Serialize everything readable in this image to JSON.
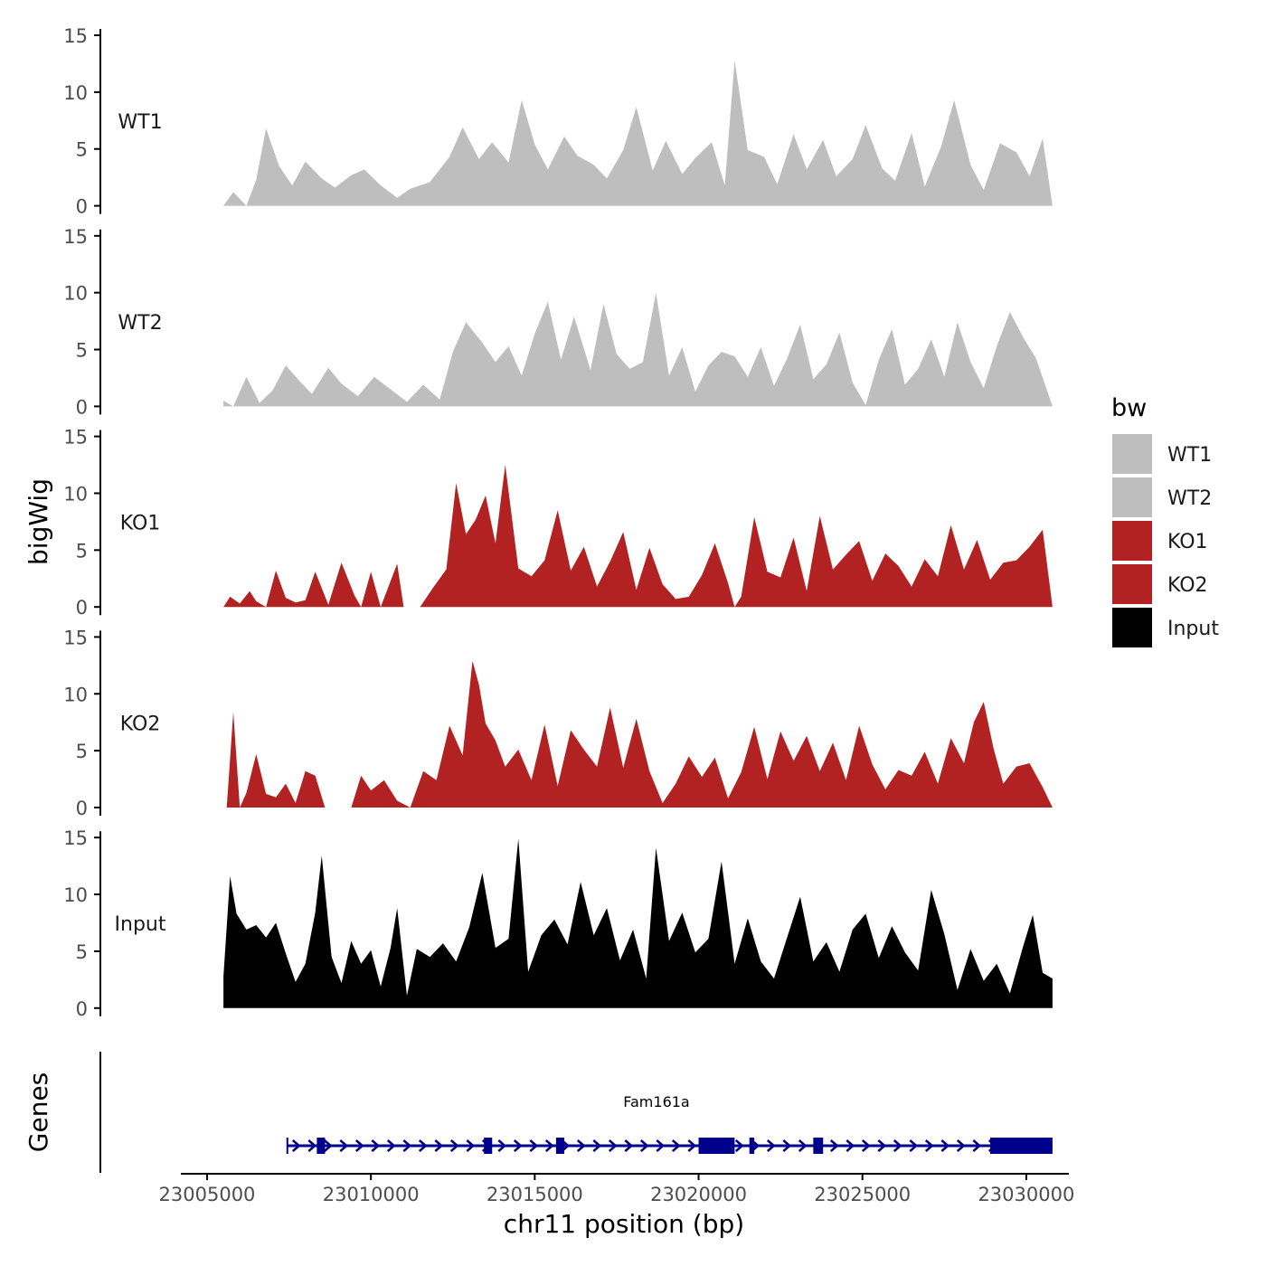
{
  "chart_data": {
    "type": "area",
    "ylabel": "bigWig",
    "xlabel": "chr11 position (bp)",
    "gene_panel_label": "Genes",
    "x_range": [
      23004200,
      23031300
    ],
    "x_ticks": [
      23005000,
      23010000,
      23015000,
      23020000,
      23025000,
      23030000
    ],
    "x_tick_labels": [
      "23005000",
      "23010000",
      "23015000",
      "23020000",
      "23025000",
      "23030000"
    ],
    "y_range": [
      0,
      15
    ],
    "y_ticks": [
      0,
      5,
      10,
      15
    ],
    "y_tick_labels": [
      "0",
      "5",
      "10",
      "15"
    ],
    "legend": {
      "title": "bw",
      "items": [
        {
          "label": "WT1",
          "color": "#bebebe"
        },
        {
          "label": "WT2",
          "color": "#bebebe"
        },
        {
          "label": "KO1",
          "color": "#b22222"
        },
        {
          "label": "KO2",
          "color": "#b22222"
        },
        {
          "label": "Input",
          "color": "#000000"
        }
      ]
    },
    "series": [
      {
        "name": "WT1",
        "color": "#bebebe",
        "x": [
          23005500,
          23005800,
          23006200,
          23006500,
          23006800,
          23007200,
          23007600,
          23008000,
          23008500,
          23008900,
          23009400,
          23009800,
          23010300,
          23010800,
          23011200,
          23011800,
          23012400,
          23012800,
          23013300,
          23013700,
          23014200,
          23014600,
          23015000,
          23015400,
          23015900,
          23016300,
          23016800,
          23017200,
          23017700,
          23018100,
          23018600,
          23019000,
          23019500,
          23019900,
          23020400,
          23020800,
          23021100,
          23021500,
          23022000,
          23022400,
          23022900,
          23023300,
          23023800,
          23024200,
          23024700,
          23025100,
          23025600,
          23026000,
          23026500,
          23026900,
          23027400,
          23027800,
          23028300,
          23028700,
          23029200,
          23029700,
          23030100,
          23030500,
          23030800
        ],
        "values": [
          0,
          1.2,
          0,
          2.3,
          6.8,
          3.5,
          1.8,
          3.9,
          2.4,
          1.6,
          2.7,
          3.2,
          1.8,
          0.7,
          1.5,
          2.1,
          4.3,
          6.9,
          4.1,
          5.6,
          3.8,
          9.3,
          5.4,
          3.2,
          6.1,
          4.4,
          3.6,
          2.4,
          4.9,
          8.7,
          3.1,
          5.7,
          2.8,
          4.2,
          5.6,
          1.8,
          12.8,
          4.9,
          4.3,
          1.9,
          6.3,
          3.2,
          5.8,
          2.6,
          4.1,
          7.1,
          3.3,
          2.2,
          6.4,
          1.7,
          5.2,
          9.3,
          3.6,
          1.4,
          5.5,
          4.7,
          2.6,
          5.9,
          0
        ]
      },
      {
        "name": "WT2",
        "color": "#bebebe",
        "x": [
          23005500,
          23005800,
          23006200,
          23006600,
          23007000,
          23007400,
          23007800,
          23008200,
          23008700,
          23009100,
          23009600,
          23010100,
          23010600,
          23011100,
          23011600,
          23012100,
          23012500,
          23012900,
          23013400,
          23013800,
          23014200,
          23014600,
          23015000,
          23015400,
          23015800,
          23016200,
          23016700,
          23017100,
          23017500,
          23017900,
          23018300,
          23018700,
          23019100,
          23019500,
          23019900,
          23020300,
          23020700,
          23021100,
          23021500,
          23021900,
          23022300,
          23022700,
          23023100,
          23023500,
          23023900,
          23024300,
          23024700,
          23025100,
          23025500,
          23025900,
          23026300,
          23026700,
          23027100,
          23027500,
          23027900,
          23028300,
          23028700,
          23029100,
          23029500,
          23029900,
          23030300,
          23030800
        ],
        "values": [
          0.5,
          0,
          2.6,
          0.3,
          1.4,
          3.6,
          2.3,
          1.1,
          3.4,
          2.0,
          0.9,
          2.6,
          1.5,
          0.4,
          1.9,
          0.6,
          4.8,
          7.4,
          5.6,
          3.9,
          5.3,
          2.7,
          6.4,
          9.2,
          4.1,
          7.9,
          3.2,
          9.0,
          4.6,
          3.3,
          3.9,
          10.0,
          2.7,
          5.2,
          1.3,
          3.6,
          4.8,
          4.4,
          2.6,
          5.2,
          1.8,
          4.2,
          7.2,
          2.4,
          3.7,
          6.5,
          2.1,
          0.1,
          4.1,
          6.8,
          1.9,
          3.3,
          5.9,
          2.6,
          7.4,
          3.9,
          1.6,
          5.3,
          8.3,
          6.1,
          4.2,
          0
        ]
      },
      {
        "name": "KO1",
        "color": "#b22222",
        "x": [
          23005500,
          23005700,
          23006000,
          23006300,
          23006500,
          23006800,
          23007100,
          23007400,
          23007700,
          23008000,
          23008300,
          23008700,
          23009100,
          23009500,
          23009700,
          23010000,
          23010300,
          23010800,
          23011000,
          23011500,
          23011900,
          23012300,
          23012600,
          23012900,
          23013200,
          23013500,
          23013800,
          23014100,
          23014500,
          23014900,
          23015300,
          23015700,
          23016100,
          23016500,
          23016900,
          23017300,
          23017700,
          23018100,
          23018500,
          23018900,
          23019300,
          23019700,
          23020100,
          23020500,
          23020900,
          23021100,
          23021300,
          23021700,
          23022100,
          23022500,
          23022900,
          23023300,
          23023700,
          23024100,
          23024500,
          23024900,
          23025300,
          23025700,
          23026100,
          23026500,
          23026900,
          23027300,
          23027700,
          23028100,
          23028500,
          23028900,
          23029300,
          23029700,
          23030100,
          23030500,
          23030800
        ],
        "values": [
          0,
          0.9,
          0.3,
          1.4,
          0.5,
          0,
          3.2,
          0.8,
          0.4,
          0.6,
          3.1,
          0.2,
          3.9,
          1.0,
          0,
          3.1,
          0,
          3.8,
          0,
          0,
          1.7,
          3.3,
          10.9,
          6.4,
          7.7,
          9.8,
          5.6,
          12.5,
          3.4,
          2.7,
          4.1,
          8.5,
          3.2,
          5.3,
          1.8,
          4.0,
          6.6,
          1.5,
          5.2,
          2.0,
          0.7,
          0.9,
          2.8,
          5.6,
          2.1,
          0,
          0.9,
          7.9,
          3.1,
          2.6,
          6.1,
          1.4,
          8.0,
          3.3,
          4.6,
          5.8,
          2.3,
          4.7,
          3.6,
          1.8,
          4.2,
          2.7,
          7.2,
          3.3,
          5.9,
          2.4,
          3.9,
          4.1,
          5.3,
          6.8,
          0
        ]
      },
      {
        "name": "KO2",
        "color": "#b22222",
        "x": [
          23005600,
          23005800,
          23006000,
          23006200,
          23006500,
          23006800,
          23007100,
          23007400,
          23007700,
          23008000,
          23008300,
          23008600,
          23009000,
          23009400,
          23009700,
          23010000,
          23010400,
          23010800,
          23011200,
          23011600,
          23012000,
          23012400,
          23012800,
          23013100,
          23013300,
          23013500,
          23013800,
          23014100,
          23014500,
          23014900,
          23015300,
          23015700,
          23016100,
          23016500,
          23016900,
          23017300,
          23017700,
          23018100,
          23018500,
          23018900,
          23019300,
          23019700,
          23020100,
          23020500,
          23020900,
          23021300,
          23021700,
          23022100,
          23022500,
          23022900,
          23023300,
          23023700,
          23024100,
          23024500,
          23024900,
          23025300,
          23025700,
          23026100,
          23026500,
          23026900,
          23027300,
          23027700,
          23028100,
          23028400,
          23028700,
          23029000,
          23029300,
          23029700,
          23030100,
          23030500,
          23030800
        ],
        "values": [
          0,
          8.4,
          0,
          1.3,
          4.7,
          1.2,
          0.9,
          2.1,
          0.4,
          3.2,
          2.8,
          0,
          0,
          0,
          2.8,
          1.5,
          2.4,
          0.6,
          0,
          3.2,
          2.4,
          7.2,
          4.6,
          12.9,
          10.8,
          7.4,
          5.9,
          3.6,
          5.1,
          2.4,
          7.3,
          1.9,
          6.8,
          5.1,
          3.6,
          8.8,
          3.5,
          7.8,
          3.2,
          0.4,
          2.1,
          4.5,
          2.7,
          4.4,
          0.8,
          3.1,
          7.1,
          2.5,
          6.7,
          4.1,
          6.3,
          3.2,
          5.7,
          2.4,
          7.2,
          3.8,
          1.6,
          3.3,
          2.8,
          4.9,
          2.1,
          6.1,
          3.9,
          7.5,
          9.3,
          5.2,
          2.1,
          3.6,
          3.9,
          1.8,
          0
        ]
      },
      {
        "name": "Input",
        "color": "#000000",
        "x": [
          23005500,
          23005700,
          23005900,
          23006200,
          23006500,
          23006800,
          23007100,
          23007400,
          23007700,
          23008000,
          23008300,
          23008500,
          23008800,
          23009100,
          23009400,
          23009700,
          23010000,
          23010300,
          23010600,
          23010800,
          23011100,
          23011400,
          23011800,
          23012200,
          23012600,
          23013000,
          23013400,
          23013800,
          23014200,
          23014500,
          23014800,
          23015200,
          23015600,
          23016000,
          23016400,
          23016800,
          23017200,
          23017600,
          23018000,
          23018400,
          23018700,
          23019100,
          23019500,
          23019900,
          23020300,
          23020700,
          23021100,
          23021500,
          23021900,
          23022300,
          23022700,
          23023100,
          23023500,
          23023900,
          23024300,
          23024700,
          23025100,
          23025500,
          23025900,
          23026300,
          23026700,
          23027100,
          23027500,
          23027900,
          23028300,
          23028700,
          23029100,
          23029500,
          23029900,
          23030200,
          23030500,
          23030800
        ],
        "values": [
          2.8,
          11.6,
          8.3,
          6.9,
          7.3,
          6.2,
          7.5,
          4.8,
          2.3,
          3.9,
          8.4,
          13.4,
          4.5,
          2.2,
          5.9,
          3.9,
          5.1,
          1.9,
          5.3,
          8.8,
          1.1,
          5.2,
          4.5,
          5.7,
          4.1,
          7.1,
          11.9,
          5.3,
          6.1,
          14.9,
          3.2,
          6.4,
          7.8,
          5.6,
          11.1,
          6.4,
          8.8,
          4.2,
          6.9,
          2.6,
          14.1,
          5.9,
          8.4,
          4.9,
          6.1,
          12.9,
          3.9,
          7.9,
          4.1,
          2.6,
          6.2,
          9.8,
          4.1,
          5.8,
          3.2,
          6.9,
          8.3,
          4.4,
          7.2,
          4.9,
          3.3,
          10.4,
          6.5,
          1.6,
          5.2,
          2.4,
          3.9,
          1.3,
          5.4,
          8.2,
          3.1,
          2.6
        ]
      }
    ],
    "gene": {
      "name": "Fam161a",
      "color": "#00008b",
      "strand": "+",
      "start": 23007450,
      "end": 23030800,
      "exons": [
        [
          23008350,
          23008600
        ],
        [
          23013450,
          23013700
        ],
        [
          23015650,
          23015900
        ],
        [
          23020000,
          23021100
        ],
        [
          23021550,
          23021700
        ],
        [
          23023500,
          23023800
        ],
        [
          23028900,
          23030800
        ]
      ]
    }
  }
}
